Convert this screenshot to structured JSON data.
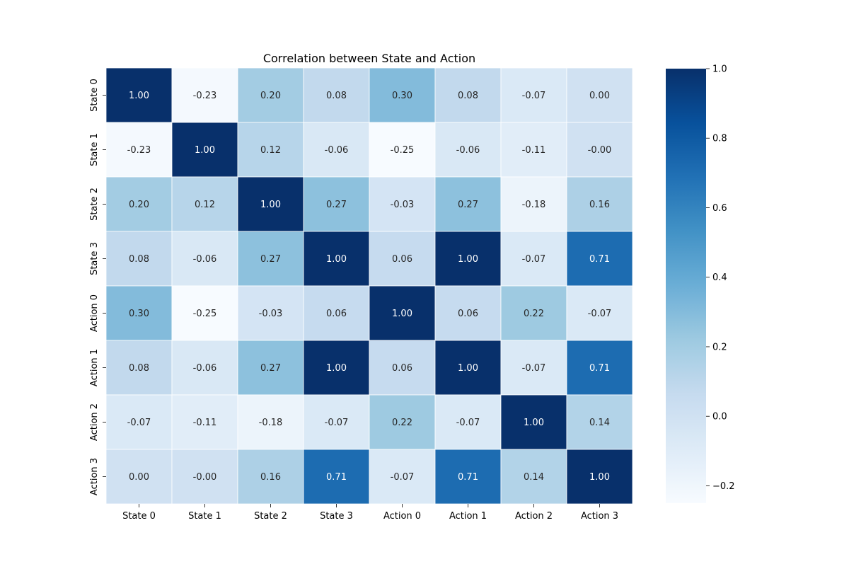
{
  "chart_data": {
    "type": "heatmap",
    "title": "Correlation between State and Action",
    "xlabel": "",
    "ylabel": "",
    "row_labels": [
      "State 0",
      "State 1",
      "State 2",
      "State 3",
      "Action 0",
      "Action 1",
      "Action 2",
      "Action 3"
    ],
    "col_labels": [
      "State 0",
      "State 1",
      "State 2",
      "State 3",
      "Action 0",
      "Action 1",
      "Action 2",
      "Action 3"
    ],
    "values": [
      [
        1.0,
        -0.23,
        0.2,
        0.08,
        0.3,
        0.08,
        -0.07,
        0.0
      ],
      [
        -0.23,
        1.0,
        0.12,
        -0.06,
        -0.25,
        -0.06,
        -0.11,
        -0.0
      ],
      [
        0.2,
        0.12,
        1.0,
        0.27,
        -0.03,
        0.27,
        -0.18,
        0.16
      ],
      [
        0.08,
        -0.06,
        0.27,
        1.0,
        0.06,
        1.0,
        -0.07,
        0.71
      ],
      [
        0.3,
        -0.25,
        -0.03,
        0.06,
        1.0,
        0.06,
        0.22,
        -0.07
      ],
      [
        0.08,
        -0.06,
        0.27,
        1.0,
        0.06,
        1.0,
        -0.07,
        0.71
      ],
      [
        -0.07,
        -0.11,
        -0.18,
        -0.07,
        0.22,
        -0.07,
        1.0,
        0.14
      ],
      [
        0.0,
        -0.0,
        0.16,
        0.71,
        -0.07,
        0.71,
        0.14,
        1.0
      ]
    ],
    "value_labels": [
      [
        "1.00",
        "-0.23",
        "0.20",
        "0.08",
        "0.30",
        "0.08",
        "-0.07",
        "0.00"
      ],
      [
        "-0.23",
        "1.00",
        "0.12",
        "-0.06",
        "-0.25",
        "-0.06",
        "-0.11",
        "-0.00"
      ],
      [
        "0.20",
        "0.12",
        "1.00",
        "0.27",
        "-0.03",
        "0.27",
        "-0.18",
        "0.16"
      ],
      [
        "0.08",
        "-0.06",
        "0.27",
        "1.00",
        "0.06",
        "1.00",
        "-0.07",
        "0.71"
      ],
      [
        "0.30",
        "-0.25",
        "-0.03",
        "0.06",
        "1.00",
        "0.06",
        "0.22",
        "-0.07"
      ],
      [
        "0.08",
        "-0.06",
        "0.27",
        "1.00",
        "0.06",
        "1.00",
        "-0.07",
        "0.71"
      ],
      [
        "-0.07",
        "-0.11",
        "-0.18",
        "-0.07",
        "0.22",
        "-0.07",
        "1.00",
        "0.14"
      ],
      [
        "0.00",
        "-0.00",
        "0.16",
        "0.71",
        "-0.07",
        "0.71",
        "0.14",
        "1.00"
      ]
    ],
    "colormap": "Blues",
    "colormap_stops": [
      "#f7fbff",
      "#deebf7",
      "#c6dbef",
      "#9ecae1",
      "#6baed6",
      "#4292c6",
      "#2171b5",
      "#08519c",
      "#08306b"
    ],
    "vmin": -0.25,
    "vmax": 1.0,
    "colorbar_ticks": [
      1.0,
      0.8,
      0.6,
      0.4,
      0.2,
      0.0,
      -0.2
    ],
    "colorbar_tick_labels": [
      "1.0",
      "0.8",
      "0.6",
      "0.4",
      "0.2",
      "0.0",
      "−0.2"
    ],
    "cell_border_color": "#ffffff",
    "text_dark_color": "#262626",
    "text_light_color": "#ffffff"
  }
}
